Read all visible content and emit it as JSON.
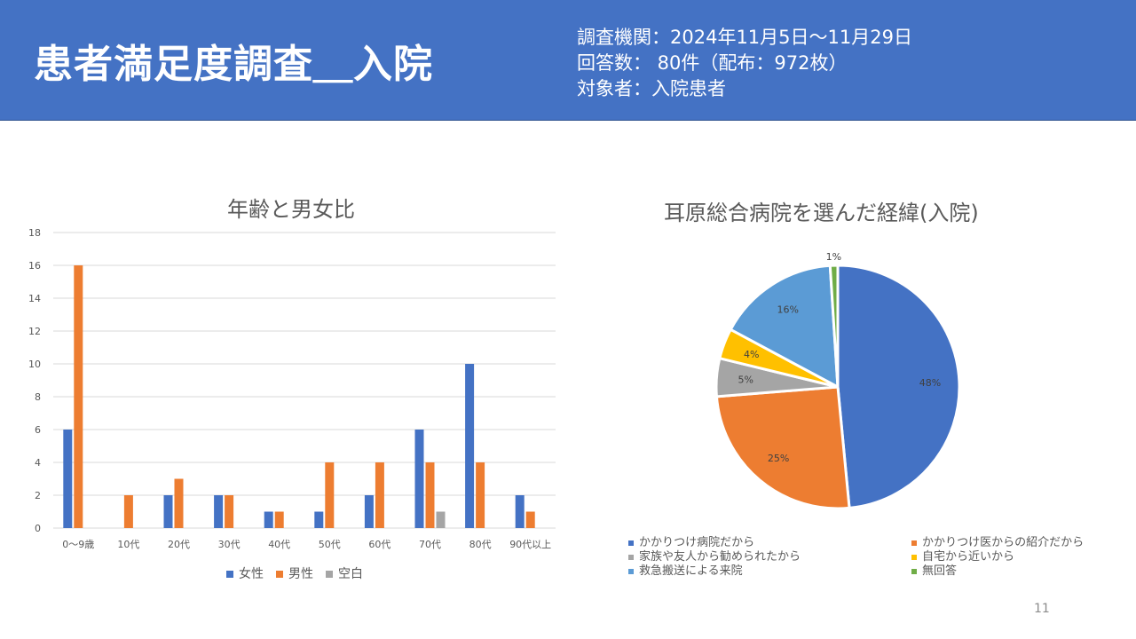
{
  "header": {
    "title": "患者満足度調査＿入院",
    "info": [
      "調査機関：2024年11月5日～11月29日",
      "回答数： 80件（配布：972枚）",
      "対象者：入院患者"
    ]
  },
  "page_number": "11",
  "colors": {
    "header_bg": "#4472c4",
    "female": "#4472c4",
    "male": "#ed7d31",
    "blank": "#a5a5a5"
  },
  "chart_data": [
    {
      "type": "bar",
      "title": "年齢と男女比",
      "categories": [
        "0～9歳",
        "10代",
        "20代",
        "30代",
        "40代",
        "50代",
        "60代",
        "70代",
        "80代",
        "90代以上"
      ],
      "series": [
        {
          "name": "女性",
          "color": "#4472c4",
          "values": [
            6,
            0,
            2,
            2,
            1,
            1,
            2,
            6,
            10,
            2
          ]
        },
        {
          "name": "男性",
          "color": "#ed7d31",
          "values": [
            16,
            2,
            3,
            2,
            1,
            4,
            4,
            4,
            4,
            1
          ]
        },
        {
          "name": "空白",
          "color": "#a5a5a5",
          "values": [
            0,
            0,
            0,
            0,
            0,
            0,
            0,
            1,
            0,
            0
          ]
        }
      ],
      "ylim": [
        0,
        18
      ],
      "yticks": [
        "0",
        "2",
        "4",
        "6",
        "8",
        "10",
        "12",
        "14",
        "16",
        "18"
      ],
      "grid": true,
      "legend": "bottom"
    },
    {
      "type": "pie",
      "title": "耳原総合病院を選んだ経緯(入院)",
      "slices": [
        {
          "label": "かかりつけ病院だから",
          "value": 48,
          "display": "48%",
          "color": "#4472c4"
        },
        {
          "label": "かかりつけ医からの紹介だから",
          "value": 25,
          "display": "25%",
          "color": "#ed7d31"
        },
        {
          "label": "家族や友人から勧められたから",
          "value": 5,
          "display": "5%",
          "color": "#a5a5a5"
        },
        {
          "label": "自宅から近いから",
          "value": 4,
          "display": "4%",
          "color": "#ffc000"
        },
        {
          "label": "救急搬送による来院",
          "value": 16,
          "display": "16%",
          "color": "#5b9bd5"
        },
        {
          "label": "無回答",
          "value": 1,
          "display": "1%",
          "color": "#70ad47"
        }
      ],
      "legend": "bottom"
    }
  ]
}
